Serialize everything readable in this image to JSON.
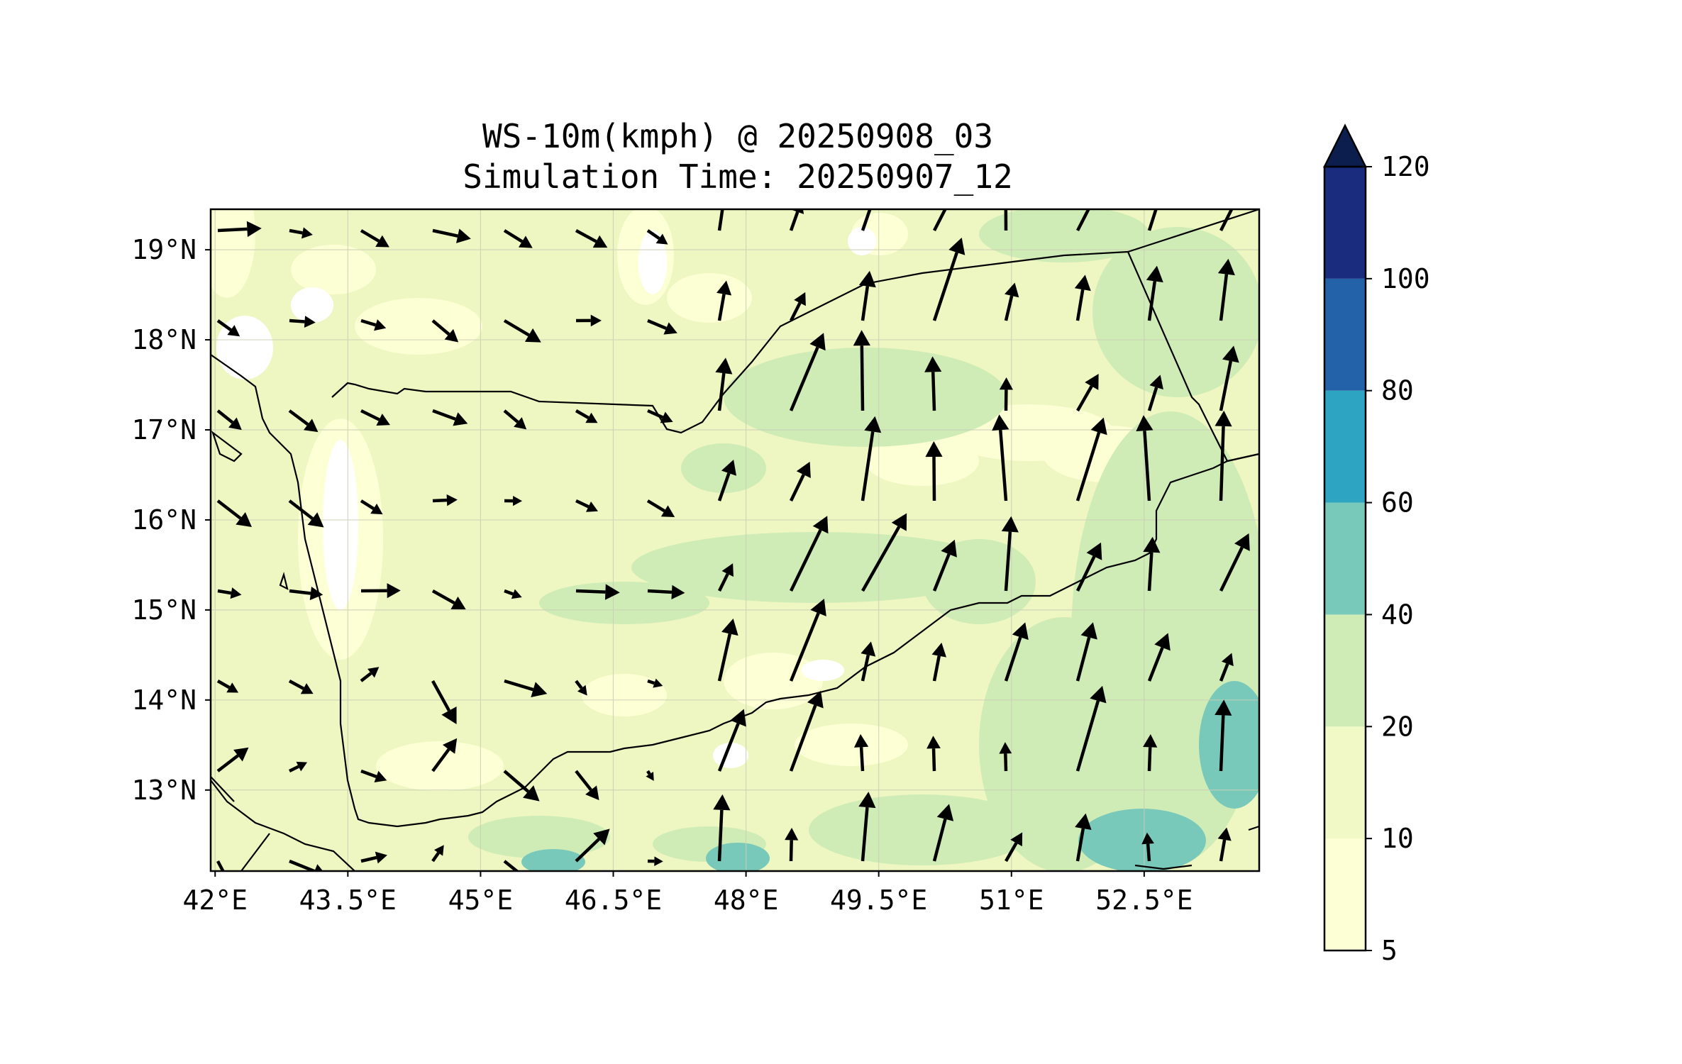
{
  "title": {
    "line1": "WS-10m(kmph) @ 20250908_03",
    "line2": "Simulation Time: 20250907_12"
  },
  "map": {
    "lon_range": [
      41.95,
      53.8
    ],
    "lat_range": [
      12.1,
      19.45
    ],
    "x_ticks": [
      {
        "value": 42.0,
        "label": "42°E"
      },
      {
        "value": 43.5,
        "label": "43.5°E"
      },
      {
        "value": 45.0,
        "label": "45°E"
      },
      {
        "value": 46.5,
        "label": "46.5°E"
      },
      {
        "value": 48.0,
        "label": "48°E"
      },
      {
        "value": 49.5,
        "label": "49.5°E"
      },
      {
        "value": 51.0,
        "label": "51°E"
      },
      {
        "value": 52.5,
        "label": "52.5°E"
      }
    ],
    "y_ticks": [
      {
        "value": 13,
        "label": "13°N"
      },
      {
        "value": 14,
        "label": "14°N"
      },
      {
        "value": 15,
        "label": "15°N"
      },
      {
        "value": 16,
        "label": "16°N"
      },
      {
        "value": 17,
        "label": "17°N"
      },
      {
        "value": 18,
        "label": "18°N"
      },
      {
        "value": 19,
        "label": "19°N"
      }
    ],
    "gridlines": true,
    "colors": {
      "land_background": "#eef7c2",
      "coast": "#000000",
      "border": "#000000",
      "arrow": "#000000"
    }
  },
  "colorbar": {
    "extend": "max",
    "levels": [
      {
        "value": 5,
        "label": "5",
        "color": "#fdffd5"
      },
      {
        "value": 10,
        "label": "10",
        "color": "#f1f9c6"
      },
      {
        "value": 20,
        "label": "20",
        "color": "#d0ecb6"
      },
      {
        "value": 40,
        "label": "40",
        "color": "#79c9ba"
      },
      {
        "value": 60,
        "label": "60",
        "color": "#2da4c2"
      },
      {
        "value": 80,
        "label": "80",
        "color": "#2362a8"
      },
      {
        "value": 100,
        "label": "100",
        "color": "#1a2c7e"
      },
      {
        "value": 120,
        "label": "120",
        "color": "#0b1e4e"
      }
    ]
  }
}
